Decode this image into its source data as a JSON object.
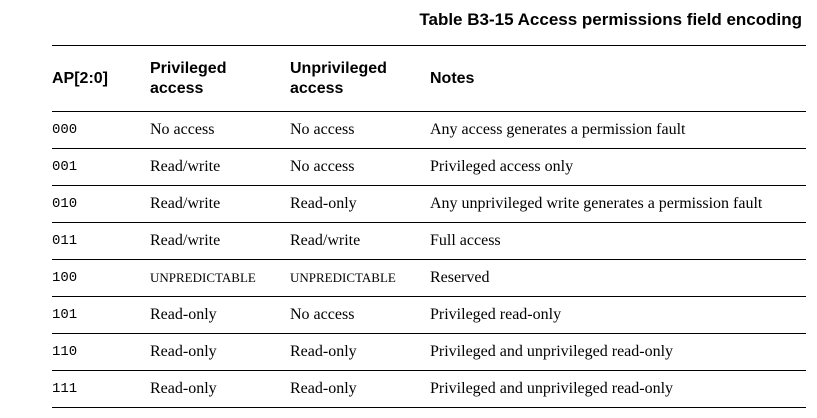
{
  "caption": "Table B3-15 Access permissions field encoding",
  "table": {
    "headers": {
      "ap": "AP[2:0]",
      "privileged": "Privileged\naccess",
      "unprivileged": "Unprivileged\naccess",
      "notes": "Notes"
    },
    "rows": [
      {
        "ap": "000",
        "privileged": "No access",
        "unprivileged": "No access",
        "notes": "Any access generates a permission fault"
      },
      {
        "ap": "001",
        "privileged": "Read/write",
        "unprivileged": "No access",
        "notes": "Privileged access only"
      },
      {
        "ap": "010",
        "privileged": "Read/write",
        "unprivileged": "Read-only",
        "notes": "Any unprivileged write generates a permission fault"
      },
      {
        "ap": "011",
        "privileged": "Read/write",
        "unprivileged": "Read/write",
        "notes": "Full access"
      },
      {
        "ap": "100",
        "privileged": "UNPREDICTABLE",
        "unprivileged": "UNPREDICTABLE",
        "notes": "Reserved"
      },
      {
        "ap": "101",
        "privileged": "Read-only",
        "unprivileged": "No access",
        "notes": "Privileged read-only"
      },
      {
        "ap": "110",
        "privileged": "Read-only",
        "unprivileged": "Read-only",
        "notes": "Privileged and unprivileged read-only"
      },
      {
        "ap": "111",
        "privileged": "Read-only",
        "unprivileged": "Read-only",
        "notes": "Privileged and unprivileged read-only"
      }
    ]
  }
}
